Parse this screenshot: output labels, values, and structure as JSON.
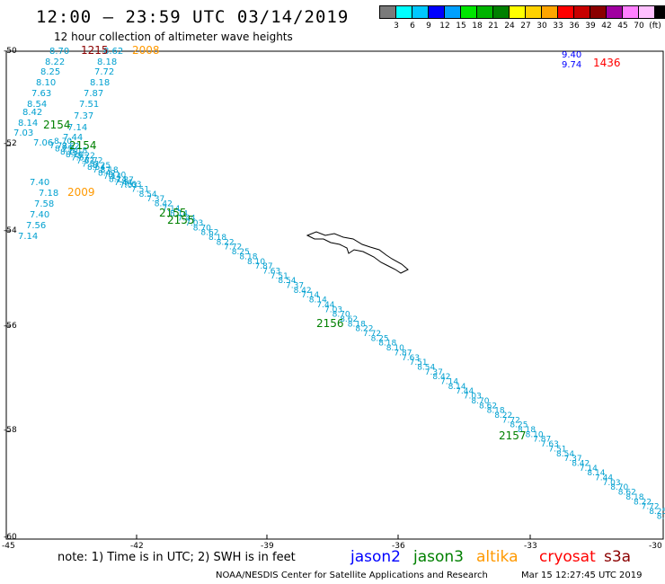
{
  "header": {
    "title": "12:00 – 23:59 UTC 03/14/2019",
    "subtitle": "12 hour collection of altimeter wave heights"
  },
  "scale": {
    "colors": [
      "#7a7a7a",
      "#00ffff",
      "#00c8ff",
      "#0000ff",
      "#00a0ff",
      "#00e600",
      "#00b400",
      "#008000",
      "#ffff00",
      "#ffd200",
      "#ffa500",
      "#ff0000",
      "#c80000",
      "#8b0000",
      "#a000a0",
      "#ff80ff",
      "#ffc0ff",
      "#000000"
    ],
    "labels": [
      "3",
      "6",
      "9",
      "12",
      "15",
      "18",
      "21",
      "24",
      "27",
      "30",
      "33",
      "36",
      "39",
      "42",
      "45",
      "70"
    ],
    "unit": "(ft)"
  },
  "axes": {
    "yticks": [
      "-50",
      "-52",
      "-54",
      "-56",
      "-58",
      "-60"
    ],
    "xticks": [
      "-45",
      "-42",
      "-39",
      "-36",
      "-33",
      "-30"
    ]
  },
  "labels": {
    "times": [
      "1215",
      "2008",
      "1436",
      "2154",
      "2154",
      "2009",
      "2155",
      "2155",
      "2156",
      "2157"
    ],
    "heights": [
      "8.70",
      "8.62",
      "8.18",
      "8.22",
      "7.72",
      "8.25",
      "8.18",
      "8.10",
      "7.87",
      "7.63",
      "7.51",
      "8.54",
      "7.37",
      "8.42",
      "7.14",
      "8.14",
      "7.44",
      "7.03",
      "7.06",
      "7.40",
      "7.18",
      "7.58",
      "7.40",
      "7.56",
      "7.14",
      "9.40",
      "9.74"
    ]
  },
  "footer": {
    "note": "note: 1) Time is in UTC; 2) SWH is in feet",
    "legend": [
      "jason2",
      "jason3",
      "altika",
      "cryosat",
      "s3a"
    ],
    "credit": "NOAA/NESDIS Center for Satellite Applications and Research",
    "timestamp": "Mar 15 12:27:45 UTC 2019"
  },
  "colors": {
    "jason2": "#0000ff",
    "jason3": "#008000",
    "altika": "#ff9900",
    "cryosat": "#ff0000",
    "s3a": "#8b0000",
    "track": "#00a0d0"
  }
}
